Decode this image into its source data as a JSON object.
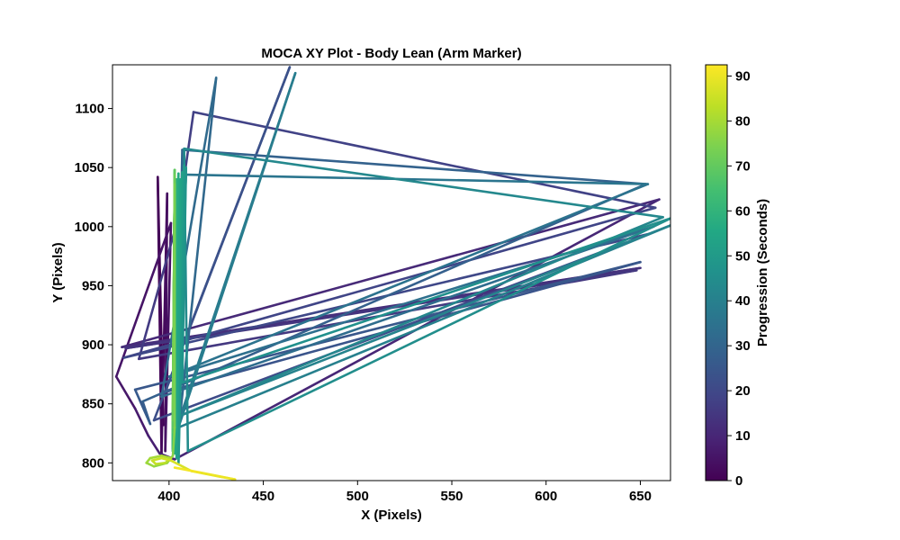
{
  "chart_data": {
    "type": "line",
    "title": "MOCA XY Plot - Body Lean (Arm Marker)",
    "xlabel": "X (Pixels)",
    "ylabel": "Y (Pixels)",
    "xlim": [
      370,
      666
    ],
    "ylim": [
      785,
      1137
    ],
    "x_ticks": [
      400,
      450,
      500,
      550,
      600,
      650
    ],
    "y_ticks": [
      800,
      850,
      900,
      950,
      1000,
      1050,
      1100
    ],
    "colorbar": {
      "label": "Progression (Seconds)",
      "range": [
        0,
        92.5
      ],
      "ticks": [
        0,
        10,
        20,
        30,
        40,
        50,
        60,
        70,
        80,
        90
      ],
      "colormap": "viridis"
    },
    "series": [
      {
        "points": [
          {
            "x": 397,
            "y": 832,
            "t": 0
          },
          {
            "x": 394,
            "y": 1042,
            "t": 1
          },
          {
            "x": 396,
            "y": 808,
            "t": 2
          },
          {
            "x": 399,
            "y": 1028,
            "t": 3
          },
          {
            "x": 398,
            "y": 810,
            "t": 4
          },
          {
            "x": 401,
            "y": 1003,
            "t": 5
          },
          {
            "x": 372,
            "y": 873,
            "t": 6
          },
          {
            "x": 382,
            "y": 846,
            "t": 7
          },
          {
            "x": 389,
            "y": 823,
            "t": 8
          },
          {
            "x": 395,
            "y": 808,
            "t": 9
          },
          {
            "x": 403,
            "y": 803,
            "t": 10
          },
          {
            "x": 660,
            "y": 1023,
            "t": 11
          },
          {
            "x": 375,
            "y": 898,
            "t": 12
          },
          {
            "x": 650,
            "y": 965,
            "t": 13
          },
          {
            "x": 377,
            "y": 897,
            "t": 14
          },
          {
            "x": 648,
            "y": 963,
            "t": 15
          },
          {
            "x": 384,
            "y": 888,
            "t": 16
          },
          {
            "x": 405,
            "y": 1008,
            "t": 17
          },
          {
            "x": 413,
            "y": 1097,
            "t": 18
          },
          {
            "x": 658,
            "y": 1016,
            "t": 19
          },
          {
            "x": 376,
            "y": 889,
            "t": 20
          },
          {
            "x": 655,
            "y": 994,
            "t": 21
          },
          {
            "x": 392,
            "y": 836,
            "t": 22
          },
          {
            "x": 464,
            "y": 1135,
            "t": 23
          },
          {
            "x": 398,
            "y": 860,
            "t": 24
          },
          {
            "x": 650,
            "y": 970,
            "t": 25
          },
          {
            "x": 382,
            "y": 862,
            "t": 26
          },
          {
            "x": 390,
            "y": 833,
            "t": 27
          },
          {
            "x": 386,
            "y": 852,
            "t": 28
          },
          {
            "x": 653,
            "y": 1036,
            "t": 29
          },
          {
            "x": 407,
            "y": 1065,
            "t": 30
          },
          {
            "x": 404,
            "y": 812,
            "t": 31
          },
          {
            "x": 425,
            "y": 1126,
            "t": 32
          },
          {
            "x": 396,
            "y": 856,
            "t": 33
          },
          {
            "x": 657,
            "y": 1000,
            "t": 34
          },
          {
            "x": 400,
            "y": 873,
            "t": 35
          },
          {
            "x": 654,
            "y": 1036,
            "t": 36
          },
          {
            "x": 409,
            "y": 1044,
            "t": 37
          },
          {
            "x": 403,
            "y": 825,
            "t": 38
          },
          {
            "x": 467,
            "y": 1130,
            "t": 39
          },
          {
            "x": 405,
            "y": 830,
            "t": 40
          },
          {
            "x": 666,
            "y": 1001,
            "t": 41
          },
          {
            "x": 406,
            "y": 840,
            "t": 42
          },
          {
            "x": 662,
            "y": 1008,
            "t": 43
          },
          {
            "x": 408,
            "y": 1066,
            "t": 44
          },
          {
            "x": 410,
            "y": 810,
            "t": 45
          },
          {
            "x": 666,
            "y": 1007,
            "t": 46
          },
          {
            "x": 407,
            "y": 868,
            "t": 47
          },
          {
            "x": 409,
            "y": 1050,
            "t": 48
          },
          {
            "x": 405,
            "y": 800,
            "t": 49
          },
          {
            "x": 408,
            "y": 1052,
            "t": 50
          },
          {
            "x": 404,
            "y": 804,
            "t": 51
          },
          {
            "x": 407,
            "y": 1046,
            "t": 52
          },
          {
            "x": 404,
            "y": 806,
            "t": 53
          },
          {
            "x": 406,
            "y": 1040,
            "t": 54
          },
          {
            "x": 403,
            "y": 808,
            "t": 55
          },
          {
            "x": 405,
            "y": 1045,
            "t": 56
          },
          {
            "x": 402,
            "y": 810,
            "t": 57
          },
          {
            "x": 404,
            "y": 1040,
            "t": 58
          },
          {
            "x": 402,
            "y": 812,
            "t": 59
          },
          {
            "x": 403,
            "y": 1042,
            "t": 60
          },
          {
            "x": 402,
            "y": 814,
            "t": 61
          },
          {
            "x": 403,
            "y": 1048,
            "t": 62
          },
          {
            "x": 402,
            "y": 818,
            "t": 63
          },
          {
            "x": 403,
            "y": 1046,
            "t": 64
          },
          {
            "x": 402,
            "y": 822,
            "t": 65
          },
          {
            "x": 403,
            "y": 1040,
            "t": 66
          },
          {
            "x": 402,
            "y": 826,
            "t": 67
          },
          {
            "x": 403,
            "y": 1038,
            "t": 68
          },
          {
            "x": 402,
            "y": 830,
            "t": 69
          },
          {
            "x": 403,
            "y": 1048,
            "t": 70
          },
          {
            "x": 402,
            "y": 836,
            "t": 71
          },
          {
            "x": 403,
            "y": 1044,
            "t": 72
          },
          {
            "x": 402,
            "y": 846,
            "t": 73
          },
          {
            "x": 403,
            "y": 1036,
            "t": 74
          },
          {
            "x": 403,
            "y": 830,
            "t": 75
          },
          {
            "x": 402,
            "y": 806,
            "t": 76
          },
          {
            "x": 399,
            "y": 800,
            "t": 77
          },
          {
            "x": 392,
            "y": 797,
            "t": 78
          },
          {
            "x": 388,
            "y": 800,
            "t": 79
          },
          {
            "x": 390,
            "y": 804,
            "t": 80
          },
          {
            "x": 396,
            "y": 806,
            "t": 81
          },
          {
            "x": 401,
            "y": 804,
            "t": 82
          },
          {
            "x": 398,
            "y": 800,
            "t": 83
          },
          {
            "x": 393,
            "y": 799,
            "t": 84
          },
          {
            "x": 391,
            "y": 802,
            "t": 85
          },
          {
            "x": 396,
            "y": 804,
            "t": 86
          },
          {
            "x": 401,
            "y": 802,
            "t": 87
          },
          {
            "x": 412,
            "y": 793,
            "t": 88
          },
          {
            "x": 428,
            "y": 788,
            "t": 89
          },
          {
            "x": 435,
            "y": 786,
            "t": 90
          },
          {
            "x": 416,
            "y": 792,
            "t": 91
          },
          {
            "x": 403,
            "y": 796,
            "t": 92
          }
        ]
      }
    ]
  }
}
